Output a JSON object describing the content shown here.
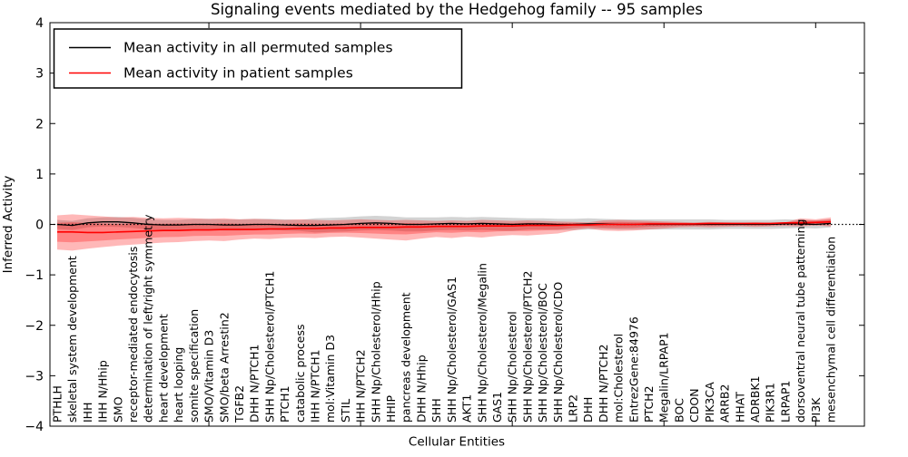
{
  "figure": {
    "background": "#ffffff",
    "plot_border_color": "#000000"
  },
  "chart_data": {
    "type": "line",
    "title": "Signaling events mediated by the Hedgehog family -- 95 samples",
    "xlabel": "Cellular Entities",
    "ylabel": "Inferred Activity",
    "ylim": [
      -4,
      4
    ],
    "yticks": [
      4,
      3,
      2,
      1,
      0,
      -1,
      -2,
      -3,
      -4
    ],
    "x_major_tick_indices": [
      10,
      20,
      30,
      40,
      50
    ],
    "grid": false,
    "legend": {
      "position": "upper left",
      "border_color": "#000000",
      "background": "#ffffff"
    },
    "zero_line": {
      "y": 0,
      "style": "dotted",
      "color": "#000000"
    },
    "categories": [
      "PTHLH",
      "skeletal system development",
      "IHH",
      "IHH N/Hhip",
      "SMO",
      "receptor-mediated endocytosis",
      "determination of left/right symmetry",
      "heart development",
      "heart looping",
      "somite specification",
      "SMO/Vitamin D3",
      "SMO/beta Arrestin2",
      "TGFB2",
      "DHH N/PTCH1",
      "SHH Np/Cholesterol/PTCH1",
      "PTCH1",
      "catabolic process",
      "IHH N/PTCH1",
      "mol:Vitamin D3",
      "STIL",
      "IHH N/PTCH2",
      "SHH Np/Cholesterol/Hhip",
      "HHIP",
      "pancreas development",
      "DHH N/Hhip",
      "SHH",
      "SHH Np/Cholesterol/GAS1",
      "AKT1",
      "SHH Np/Cholesterol/Megalin",
      "GAS1",
      "SHH Np/Cholesterol",
      "SHH Np/Cholesterol/PTCH2",
      "SHH Np/Cholesterol/BOC",
      "SHH Np/Cholesterol/CDO",
      "LRP2",
      "DHH",
      "DHH N/PTCH2",
      "mol:Cholesterol",
      "EntrezGene:84976",
      "PTCH2",
      "Megalin/LRPAP1",
      "BOC",
      "CDON",
      "PIK3CA",
      "ARRB2",
      "HHAT",
      "ADRBK1",
      "PIK3R1",
      "LRPAP1",
      "dorsoventral neural tube patterning",
      "PI3K",
      "mesenchymal cell differentiation"
    ],
    "series": [
      {
        "name": "Mean activity in all permuted samples",
        "color": "#000000",
        "values": [
          0.0,
          -0.02,
          0.03,
          0.05,
          0.05,
          0.03,
          0.0,
          -0.01,
          -0.01,
          0.0,
          0.0,
          -0.01,
          -0.01,
          0.0,
          0.0,
          -0.01,
          -0.02,
          -0.02,
          -0.01,
          0.0,
          0.02,
          0.03,
          0.02,
          0.0,
          0.0,
          0.01,
          0.02,
          0.01,
          0.02,
          0.01,
          0.0,
          0.01,
          0.01,
          0.0,
          0.0,
          0.01,
          0.01,
          0.0,
          0.0,
          0.0,
          0.0,
          0.0,
          0.0,
          0.0,
          0.0,
          0.0,
          0.0,
          0.0,
          0.01,
          0.01,
          0.0,
          0.02
        ]
      },
      {
        "name": "Mean activity in patient samples",
        "color": "#ff0000",
        "values": [
          -0.15,
          -0.15,
          -0.16,
          -0.16,
          -0.15,
          -0.14,
          -0.13,
          -0.12,
          -0.12,
          -0.11,
          -0.11,
          -0.1,
          -0.1,
          -0.1,
          -0.09,
          -0.09,
          -0.08,
          -0.08,
          -0.07,
          -0.07,
          -0.06,
          -0.06,
          -0.06,
          -0.05,
          -0.05,
          -0.04,
          -0.04,
          -0.04,
          -0.03,
          -0.03,
          -0.03,
          -0.02,
          -0.02,
          -0.02,
          -0.01,
          -0.01,
          0.0,
          0.0,
          0.0,
          0.01,
          0.01,
          0.01,
          0.01,
          0.02,
          0.02,
          0.02,
          0.02,
          0.02,
          0.03,
          0.03,
          0.04,
          0.05
        ]
      }
    ],
    "bands": [
      {
        "name": "permuted samples std band",
        "color": "#808080",
        "opacity": 0.35,
        "upper": [
          0.09,
          0.07,
          0.12,
          0.14,
          0.15,
          0.13,
          0.1,
          0.09,
          0.09,
          0.11,
          0.11,
          0.1,
          0.1,
          0.11,
          0.11,
          0.1,
          0.09,
          0.12,
          0.13,
          0.14,
          0.16,
          0.17,
          0.16,
          0.14,
          0.14,
          0.14,
          0.15,
          0.14,
          0.15,
          0.14,
          0.13,
          0.12,
          0.12,
          0.11,
          0.11,
          0.12,
          0.11,
          0.1,
          0.1,
          0.1,
          0.1,
          0.1,
          0.1,
          0.1,
          0.09,
          0.09,
          0.09,
          0.09,
          0.1,
          0.09,
          0.08,
          0.1
        ],
        "lower": [
          -0.09,
          -0.11,
          -0.06,
          -0.04,
          -0.05,
          -0.07,
          -0.1,
          -0.11,
          -0.11,
          -0.11,
          -0.11,
          -0.12,
          -0.12,
          -0.11,
          -0.11,
          -0.12,
          -0.13,
          -0.16,
          -0.15,
          -0.14,
          -0.12,
          -0.11,
          -0.12,
          -0.14,
          -0.14,
          -0.12,
          -0.11,
          -0.12,
          -0.11,
          -0.12,
          -0.13,
          -0.1,
          -0.1,
          -0.11,
          -0.11,
          -0.1,
          -0.09,
          -0.1,
          -0.1,
          -0.1,
          -0.1,
          -0.1,
          -0.1,
          -0.1,
          -0.09,
          -0.09,
          -0.09,
          -0.09,
          -0.08,
          -0.07,
          -0.08,
          -0.06
        ]
      },
      {
        "name": "patient samples std band (outer)",
        "color": "#ff0000",
        "opacity": 0.28,
        "upper": [
          0.18,
          0.2,
          0.18,
          0.16,
          0.14,
          0.15,
          0.13,
          0.12,
          0.13,
          0.12,
          0.11,
          0.12,
          0.1,
          0.11,
          0.1,
          0.09,
          0.1,
          0.09,
          0.08,
          0.09,
          0.1,
          0.09,
          0.08,
          0.09,
          0.08,
          0.07,
          0.08,
          0.07,
          0.09,
          0.08,
          0.07,
          0.08,
          0.07,
          0.06,
          0.05,
          0.04,
          0.08,
          0.09,
          0.08,
          0.07,
          0.06,
          0.05,
          0.04,
          0.05,
          0.04,
          0.03,
          0.04,
          0.03,
          0.04,
          0.12,
          0.1,
          0.14
        ],
        "lower": [
          -0.5,
          -0.52,
          -0.48,
          -0.45,
          -0.42,
          -0.4,
          -0.38,
          -0.36,
          -0.35,
          -0.33,
          -0.32,
          -0.33,
          -0.3,
          -0.28,
          -0.29,
          -0.27,
          -0.26,
          -0.27,
          -0.25,
          -0.24,
          -0.26,
          -0.28,
          -0.3,
          -0.32,
          -0.28,
          -0.25,
          -0.27,
          -0.24,
          -0.26,
          -0.23,
          -0.21,
          -0.22,
          -0.2,
          -0.18,
          -0.12,
          -0.08,
          -0.12,
          -0.13,
          -0.12,
          -0.1,
          -0.08,
          -0.06,
          -0.05,
          -0.06,
          -0.05,
          -0.04,
          -0.05,
          -0.04,
          -0.03,
          -0.04,
          -0.02,
          -0.04
        ]
      },
      {
        "name": "patient samples std band (inner)",
        "color": "#ff0000",
        "opacity": 0.28,
        "inner_scale_of_outer": 0.55
      }
    ]
  }
}
